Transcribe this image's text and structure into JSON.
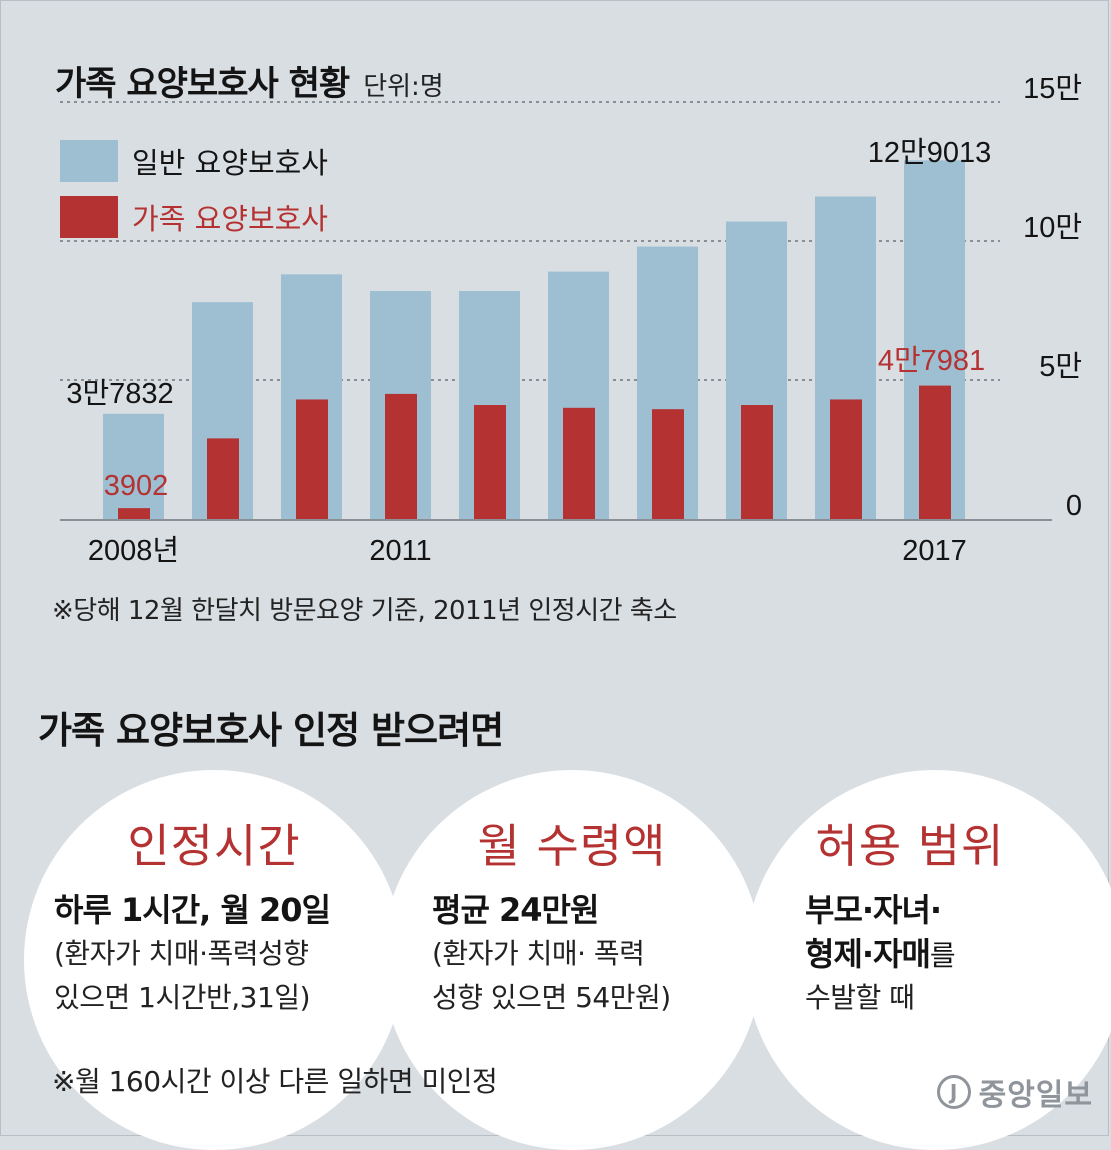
{
  "header": {
    "title": "가족 요양보호사 현황",
    "unit": "단위:명"
  },
  "legend": [
    {
      "label": "일반 요양보호사",
      "color": "#9dbfd1"
    },
    {
      "label": "가족 요양보호사",
      "color": "#b53232"
    }
  ],
  "chart_data": {
    "type": "bar",
    "title": "가족 요양보호사 현황",
    "unit": "단위:명",
    "categories": [
      "2008",
      "2009",
      "2010",
      "2011",
      "2012",
      "2013",
      "2014",
      "2015",
      "2016",
      "2017"
    ],
    "x_tick_labels": [
      "2008년",
      "",
      "",
      "2011",
      "",
      "",
      "",
      "",
      "",
      "2017"
    ],
    "series": [
      {
        "name": "일반 요양보호사",
        "color": "#9dbfd1",
        "values": [
          37832,
          78000,
          88000,
          82000,
          82000,
          89000,
          98000,
          107000,
          116000,
          129013
        ]
      },
      {
        "name": "가족 요양보호사",
        "color": "#b53232",
        "values": [
          3902,
          29000,
          43000,
          45000,
          41000,
          40000,
          39500,
          41000,
          43000,
          47981
        ]
      }
    ],
    "data_labels": {
      "first_general": "3만7832",
      "first_family": "3902",
      "last_general": "12만9013",
      "last_family": "4만7981"
    },
    "y_ticks": [
      {
        "value": 0,
        "label": "0"
      },
      {
        "value": 50000,
        "label": "5만"
      },
      {
        "value": 100000,
        "label": "10만"
      },
      {
        "value": 150000,
        "label": "15만"
      }
    ],
    "ylim": [
      0,
      150000
    ],
    "grid": "dotted"
  },
  "chart_note": "※당해 12월 한달치 방문요양 기준, 2011년 인정시간 축소",
  "section_title": "가족 요양보호사 인정 받으려면",
  "cards": [
    {
      "heading": "인정시간",
      "main": "하루 1시간, 월 20일",
      "sub1": "(환자가 치매·폭력성향",
      "sub2": "있으면 1시간반,31일)"
    },
    {
      "heading": "월 수령액",
      "main": "평균 24만원",
      "sub1": "(환자가 치매· 폭력",
      "sub2": "성향 있으면 54만원)"
    },
    {
      "heading": "허용 범위",
      "main1": "부모·자녀·",
      "main2": "형제·자매",
      "main2_suffix": "를",
      "sub1": "수발할 때"
    }
  ],
  "bottom_note": "※월 160시간 이상 다른 일하면 미인정",
  "logo": {
    "mark": "J",
    "text": "중앙일보"
  }
}
